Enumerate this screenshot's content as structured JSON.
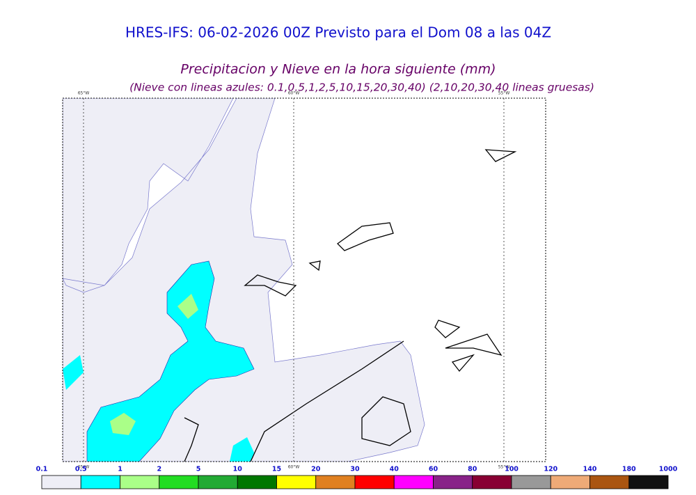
{
  "header": {
    "title": "HRES-IFS: 06-02-2026 00Z Previsto para el Dom 08 a las 04Z",
    "subtitle": "Precipitacion y Nieve en la hora siguiente (mm)",
    "note": "(Nieve con lineas azules: 0.1,0.5,1,2,5,10,15,20,30,40)  (2,10,20,30,40 lineas gruesas)"
  },
  "map": {
    "meridians": [
      "65°W",
      "60°W",
      "55°W"
    ]
  },
  "legend": {
    "labels": [
      0.1,
      0.5,
      1,
      2,
      5,
      10,
      15,
      20,
      30,
      40,
      60,
      80,
      100,
      120,
      140,
      180,
      1000
    ],
    "colors": [
      "#eeeef6",
      "#00ffff",
      "#aaff88",
      "#22dd22",
      "#22aa33",
      "#007700",
      "#ffff00",
      "#e08020",
      "#ff0000",
      "#ff00ff",
      "#882288",
      "#880033",
      "#999999",
      "#eeaa77",
      "#aa5511",
      "#111111"
    ]
  }
}
